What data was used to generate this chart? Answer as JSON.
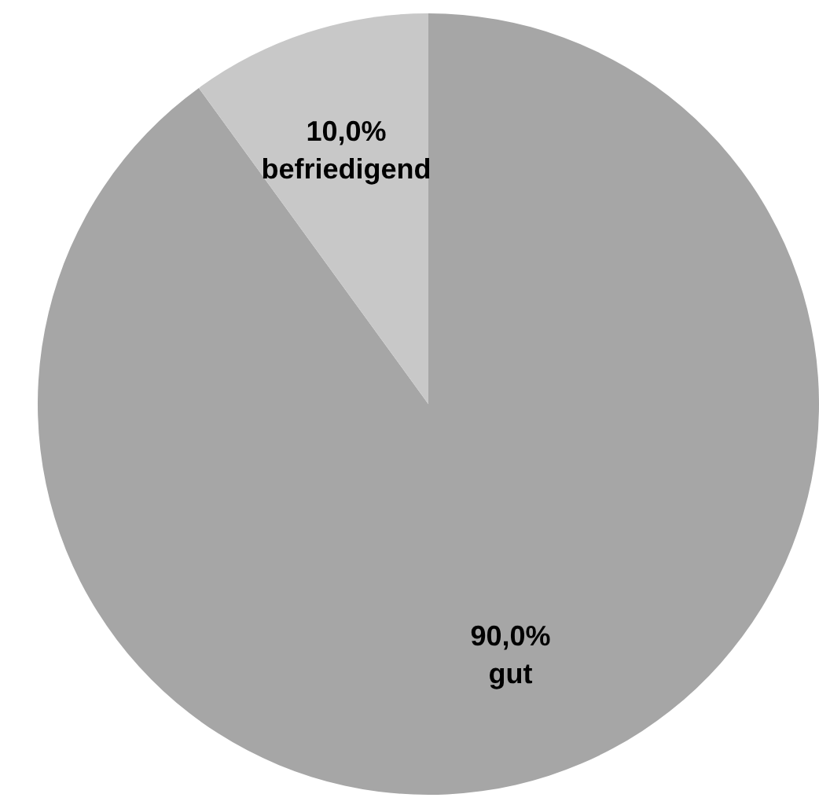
{
  "chart_data": {
    "type": "pie",
    "categories": [
      "gut",
      "befriedigend"
    ],
    "values": [
      90,
      10
    ],
    "colors": [
      "#a6a6a6",
      "#c8c8c8"
    ],
    "value_labels": [
      "90,0%",
      "10,0%"
    ],
    "legend": false
  }
}
